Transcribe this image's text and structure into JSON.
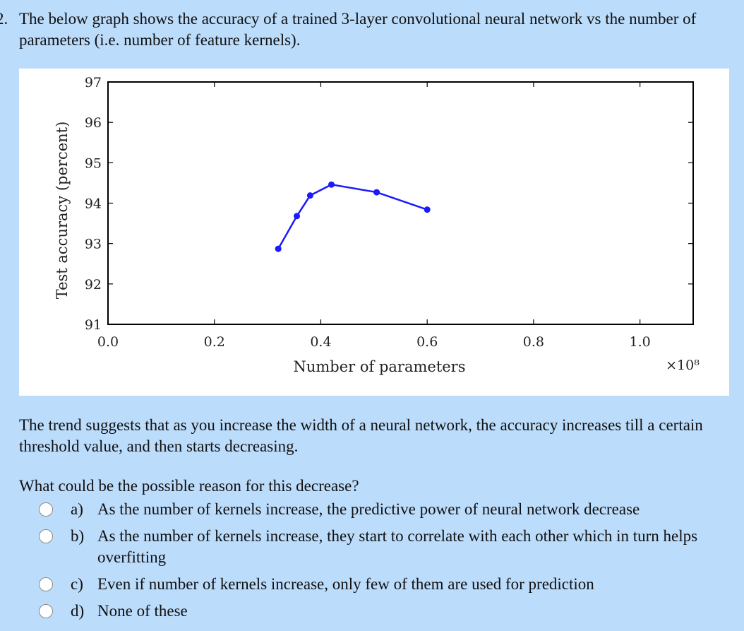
{
  "question": {
    "number": "2.",
    "text": "The below graph shows the accuracy of a trained 3-layer convolutional neural network vs the number of parameters (i.e. number of feature kernels)."
  },
  "chart_data": {
    "type": "line",
    "title": "",
    "xlabel": "Number of parameters",
    "ylabel": "Test accuracy (percent)",
    "x_multiplier_label": "×10⁸",
    "xlim": [
      0.0,
      1.1
    ],
    "ylim": [
      91,
      97
    ],
    "x_ticks": [
      "0.0",
      "0.2",
      "0.4",
      "0.6",
      "0.8",
      "1.0"
    ],
    "y_ticks": [
      "97",
      "96",
      "95",
      "94",
      "93",
      "92",
      "91"
    ],
    "series": [
      {
        "color": "#1a1aff",
        "points": [
          [
            0.32,
            92.87
          ],
          [
            0.355,
            93.68
          ],
          [
            0.38,
            94.19
          ],
          [
            0.42,
            94.46
          ],
          [
            0.505,
            94.27
          ],
          [
            0.6,
            93.84
          ]
        ]
      }
    ],
    "grid": false
  },
  "trend_text": "The trend suggests that as you increase the width of a neural network, the accuracy increases till a certain threshold value, and then starts decreasing.",
  "prompt": "What could be the possible reason for this decrease?",
  "options": [
    {
      "letter": "a)",
      "text": "As the number of kernels increase, the predictive power of neural network decrease"
    },
    {
      "letter": "b)",
      "text": "As the number of kernels increase, they start to correlate with each other which in turn helps overfitting"
    },
    {
      "letter": "c)",
      "text": "Even if number of kernels increase, only few of them are used for prediction"
    },
    {
      "letter": "d)",
      "text": "None of these"
    }
  ]
}
